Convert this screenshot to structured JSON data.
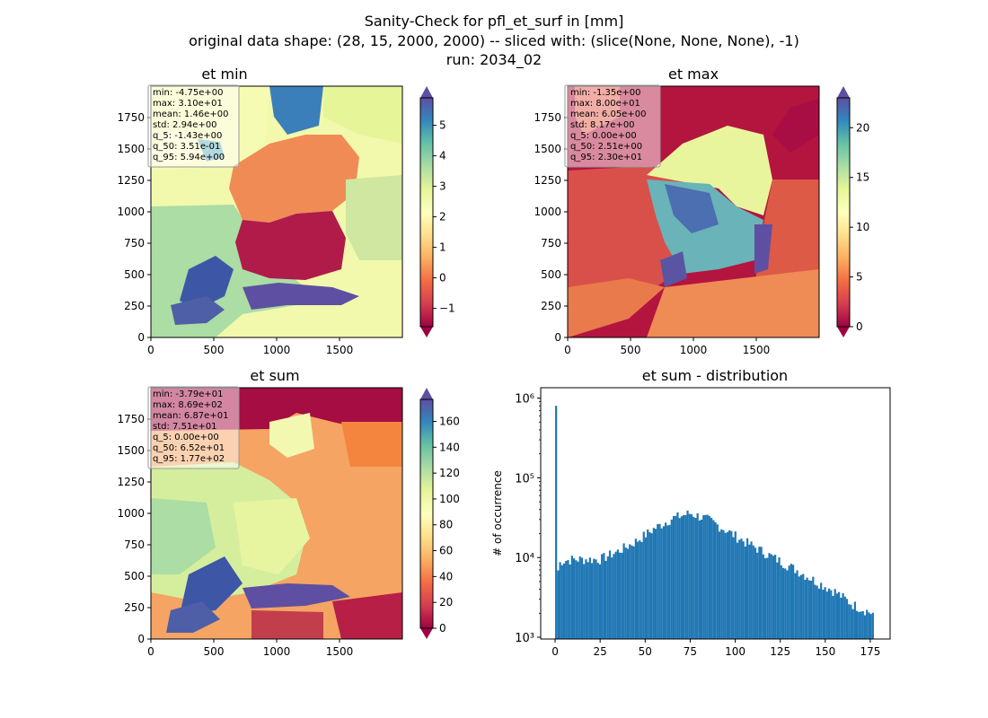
{
  "figure": {
    "suptitle_lines": [
      "Sanity-Check for pfl_et_surf in [mm]",
      "original data shape: (28, 15, 2000, 2000) -- sliced with: (slice(None, None, None), -1)",
      "run: 2034_02"
    ]
  },
  "chart_data": [
    {
      "type": "heatmap",
      "title": "et min",
      "xlabel": "",
      "ylabel": "",
      "xlim": [
        0,
        2000
      ],
      "ylim": [
        0,
        2000
      ],
      "x_ticks": [
        "0",
        "500",
        "1000",
        "1500"
      ],
      "y_ticks": [
        "0",
        "250",
        "500",
        "750",
        "1000",
        "1250",
        "1500",
        "1750"
      ],
      "colormap": "Spectral",
      "colorbar": {
        "ticks": [
          "−1",
          "0",
          "1",
          "2",
          "3",
          "4",
          "5"
        ],
        "range": [
          -1.6,
          5.9
        ],
        "extend": "both"
      },
      "stats_box": [
        "min: -4.75e+00",
        "max: 3.10e+01",
        "mean: 1.46e+00",
        "std: 2.94e+00",
        "q_5: -1.43e+00",
        "q_50: 3.51e-01",
        "q_95: 5.94e+00"
      ]
    },
    {
      "type": "heatmap",
      "title": "et max",
      "xlabel": "",
      "ylabel": "",
      "xlim": [
        0,
        2000
      ],
      "ylim": [
        0,
        2000
      ],
      "x_ticks": [
        "0",
        "500",
        "1000",
        "1500"
      ],
      "y_ticks": [
        "0",
        "250",
        "500",
        "750",
        "1000",
        "1250",
        "1500",
        "1750"
      ],
      "colormap": "Spectral",
      "colorbar": {
        "ticks": [
          "0",
          "5",
          "10",
          "15",
          "20"
        ],
        "range": [
          0,
          23
        ],
        "extend": "both"
      },
      "stats_box": [
        "min: -1.35e+00",
        "max: 8.00e+01",
        "mean: 6.05e+00",
        "std: 8.17e+00",
        "q_5: 0.00e+00",
        "q_50: 2.51e+00",
        "q_95: 2.30e+01"
      ]
    },
    {
      "type": "heatmap",
      "title": "et sum",
      "xlabel": "",
      "ylabel": "",
      "xlim": [
        0,
        2000
      ],
      "ylim": [
        0,
        2000
      ],
      "x_ticks": [
        "0",
        "500",
        "1000",
        "1500"
      ],
      "y_ticks": [
        "0",
        "250",
        "500",
        "750",
        "1000",
        "1250",
        "1500",
        "1750"
      ],
      "colormap": "Spectral",
      "colorbar": {
        "ticks": [
          "0",
          "20",
          "40",
          "60",
          "80",
          "100",
          "120",
          "140",
          "160"
        ],
        "range": [
          0,
          177
        ],
        "extend": "both"
      },
      "stats_box": [
        "min: -3.79e+01",
        "max: 8.69e+02",
        "mean: 6.87e+01",
        "std: 7.51e+01",
        "q_5: 0.00e+00",
        "q_50: 6.52e+01",
        "q_95: 1.77e+02"
      ]
    },
    {
      "type": "bar",
      "title": "et sum - distribution",
      "xlabel": "",
      "ylabel": "# of occurrence",
      "yscale": "log",
      "xlim": [
        -8,
        186
      ],
      "ylim": [
        950,
        1350000
      ],
      "x_ticks": [
        "0",
        "25",
        "50",
        "75",
        "100",
        "125",
        "150",
        "175"
      ],
      "y_ticks": [
        "10³",
        "10⁴",
        "10⁵",
        "10⁶"
      ],
      "bar_color": "#1f77b4",
      "bins": [
        0,
        177
      ],
      "bin_count": 160,
      "spike": {
        "x": 0,
        "y": 800000
      },
      "profile": [
        [
          0.5,
          5500
        ],
        [
          3,
          9000
        ],
        [
          10,
          9500
        ],
        [
          25,
          9500
        ],
        [
          35,
          12000
        ],
        [
          45,
          16000
        ],
        [
          55,
          23000
        ],
        [
          65,
          31000
        ],
        [
          75,
          36000
        ],
        [
          85,
          30000
        ],
        [
          95,
          22000
        ],
        [
          105,
          16000
        ],
        [
          115,
          12000
        ],
        [
          125,
          9000
        ],
        [
          135,
          6800
        ],
        [
          145,
          5000
        ],
        [
          155,
          3800
        ],
        [
          165,
          2600
        ],
        [
          176,
          2000
        ]
      ]
    }
  ]
}
